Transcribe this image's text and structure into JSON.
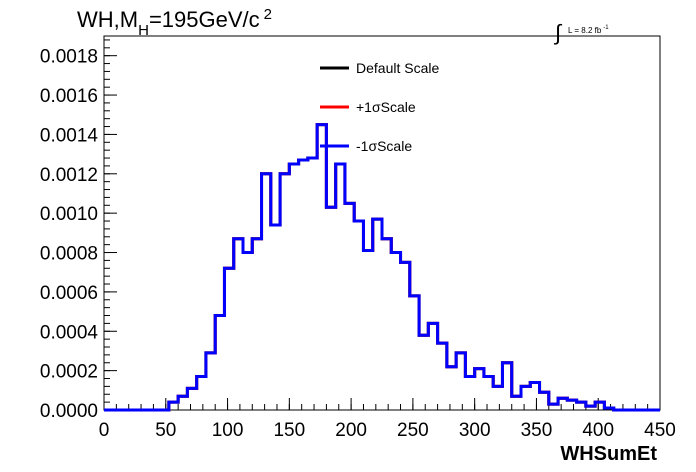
{
  "chart_data": {
    "type": "line",
    "title": {
      "prefix": "WH,M",
      "subscript": "H",
      "middle": "=195GeV/c",
      "superscript": "2"
    },
    "luminosity": {
      "integral": "∫",
      "text": "L = 8.2 fb",
      "superscript": "-1"
    },
    "xlabel": "WHSumEt",
    "ylabel": "",
    "xlim": [
      0,
      450
    ],
    "ylim": [
      0,
      0.0019
    ],
    "x_ticks": [
      0,
      50,
      100,
      150,
      200,
      250,
      300,
      350,
      400,
      450
    ],
    "x_tick_labels": [
      "0",
      "50",
      "100",
      "150",
      "200",
      "250",
      "300",
      "350",
      "400",
      "450"
    ],
    "y_ticks": [
      0,
      0.0002,
      0.0004,
      0.0006,
      0.0008,
      0.001,
      0.0012,
      0.0014,
      0.0016,
      0.0018
    ],
    "y_tick_labels": [
      "0.0000",
      "0.0002",
      "0.0004",
      "0.0006",
      "0.0008",
      "0.0010",
      "0.0012",
      "0.0014",
      "0.0016",
      "0.0018"
    ],
    "grid": false,
    "legend_placement": "top-center",
    "bin_width": 7.5,
    "bin_edges_start": 0,
    "series": [
      {
        "name": "Default Scale",
        "color": "#000000",
        "values": [
          0,
          0,
          0,
          0,
          0,
          0,
          0,
          4e-05,
          7e-05,
          0.00011,
          0.00017,
          0.00029,
          0.00048,
          0.00072,
          0.00087,
          0.0008,
          0.00087,
          0.0012,
          0.00094,
          0.0012,
          0.00125,
          0.00127,
          0.00128,
          0.00145,
          0.00103,
          0.00125,
          0.00105,
          0.00096,
          0.00081,
          0.00097,
          0.00087,
          0.0008,
          0.00075,
          0.00058,
          0.00038,
          0.00044,
          0.00034,
          0.00022,
          0.00029,
          0.00017,
          0.00021,
          0.00017,
          0.00012,
          0.00024,
          7e-05,
          0.00012,
          0.00014,
          9e-05,
          3e-05,
          6e-05,
          5e-05,
          4e-05,
          2e-05,
          4e-05,
          1e-05,
          0,
          0,
          0,
          0,
          0
        ]
      },
      {
        "name": "+1σScale",
        "color": "#ff0000",
        "values": [
          0,
          0,
          0,
          0,
          0,
          0,
          0,
          4e-05,
          7e-05,
          0.00011,
          0.00017,
          0.00029,
          0.00048,
          0.00072,
          0.00087,
          0.0008,
          0.00087,
          0.0012,
          0.00094,
          0.0012,
          0.00125,
          0.00127,
          0.00128,
          0.00145,
          0.00103,
          0.00125,
          0.00105,
          0.00096,
          0.00081,
          0.00097,
          0.00087,
          0.0008,
          0.00075,
          0.00058,
          0.00038,
          0.00044,
          0.00034,
          0.00022,
          0.00029,
          0.00017,
          0.00021,
          0.00017,
          0.00012,
          0.00024,
          7e-05,
          0.00012,
          0.00014,
          9e-05,
          3e-05,
          6e-05,
          5e-05,
          4e-05,
          2e-05,
          4e-05,
          1e-05,
          0,
          0,
          0,
          0,
          0
        ]
      },
      {
        "name": "-1σScale",
        "color": "#0000ff",
        "values": [
          0,
          0,
          0,
          0,
          0,
          0,
          0,
          4e-05,
          7e-05,
          0.00011,
          0.00017,
          0.00029,
          0.00048,
          0.00072,
          0.00087,
          0.0008,
          0.00087,
          0.0012,
          0.00094,
          0.0012,
          0.00125,
          0.00127,
          0.00128,
          0.00145,
          0.00103,
          0.00125,
          0.00105,
          0.00096,
          0.00081,
          0.00097,
          0.00087,
          0.0008,
          0.00075,
          0.00058,
          0.00038,
          0.00044,
          0.00034,
          0.00022,
          0.00029,
          0.00017,
          0.00021,
          0.00017,
          0.00012,
          0.00024,
          7e-05,
          0.00012,
          0.00014,
          9e-05,
          3e-05,
          6e-05,
          5e-05,
          4e-05,
          2e-05,
          4e-05,
          1e-05,
          0,
          0,
          0,
          0,
          0
        ]
      }
    ]
  }
}
